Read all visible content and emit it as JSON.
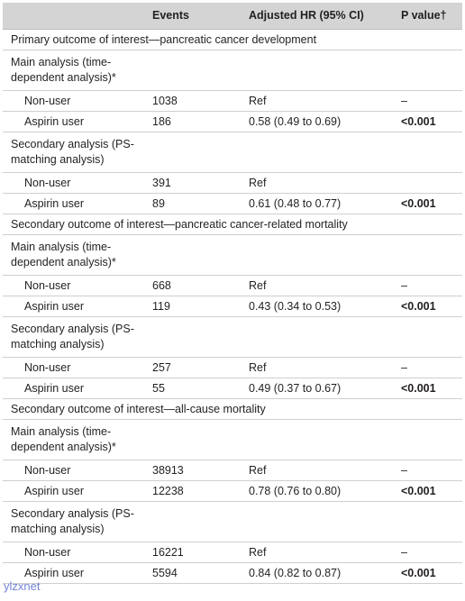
{
  "header": {
    "col0": "",
    "col1": "Events",
    "col2": "Adjusted HR (95% CI)",
    "col3": "P value†"
  },
  "rows": [
    {
      "kind": "section",
      "text": "Primary outcome of interest—pancreatic cancer development"
    },
    {
      "kind": "analysis",
      "text": "Main analysis (time-dependent analysis)*"
    },
    {
      "kind": "data",
      "group": "Non-user",
      "events": "1038",
      "hr": "Ref",
      "p": "–",
      "bold": false
    },
    {
      "kind": "data",
      "group": "Aspirin user",
      "events": "186",
      "hr": "0.58 (0.49 to 0.69)",
      "p": "<0.001",
      "bold": true
    },
    {
      "kind": "analysis",
      "text": "Secondary analysis (PS-matching analysis)"
    },
    {
      "kind": "data",
      "group": "Non-user",
      "events": "391",
      "hr": "Ref",
      "p": "",
      "bold": false
    },
    {
      "kind": "data",
      "group": "Aspirin user",
      "events": "89",
      "hr": "0.61 (0.48 to 0.77)",
      "p": "<0.001",
      "bold": true
    },
    {
      "kind": "section",
      "text": "Secondary outcome of interest—pancreatic cancer-related mortality"
    },
    {
      "kind": "analysis",
      "text": "Main analysis (time-dependent analysis)*"
    },
    {
      "kind": "data",
      "group": "Non-user",
      "events": "668",
      "hr": "Ref",
      "p": "–",
      "bold": false
    },
    {
      "kind": "data",
      "group": "Aspirin user",
      "events": "119",
      "hr": "0.43 (0.34 to 0.53)",
      "p": "<0.001",
      "bold": true
    },
    {
      "kind": "analysis",
      "text": "Secondary analysis (PS-matching analysis)"
    },
    {
      "kind": "data",
      "group": "Non-user",
      "events": "257",
      "hr": "Ref",
      "p": "–",
      "bold": false
    },
    {
      "kind": "data",
      "group": "Aspirin user",
      "events": "55",
      "hr": "0.49 (0.37 to 0.67)",
      "p": "<0.001",
      "bold": true
    },
    {
      "kind": "section",
      "text": "Secondary outcome of interest—all-cause mortality"
    },
    {
      "kind": "analysis",
      "text": "Main analysis (time-dependent analysis)*"
    },
    {
      "kind": "data",
      "group": "Non-user",
      "events": "38913",
      "hr": "Ref",
      "p": "–",
      "bold": false
    },
    {
      "kind": "data",
      "group": "Aspirin user",
      "events": "12238",
      "hr": "0.78 (0.76 to 0.80)",
      "p": "<0.001",
      "bold": true
    },
    {
      "kind": "analysis",
      "text": "Secondary analysis (PS-matching analysis)"
    },
    {
      "kind": "data",
      "group": "Non-user",
      "events": "16221",
      "hr": "Ref",
      "p": "–",
      "bold": false
    },
    {
      "kind": "data",
      "group": "Aspirin user",
      "events": "5594",
      "hr": "0.84 (0.82 to 0.87)",
      "p": "<0.001",
      "bold": true
    }
  ],
  "watermark": "ylzxnet"
}
